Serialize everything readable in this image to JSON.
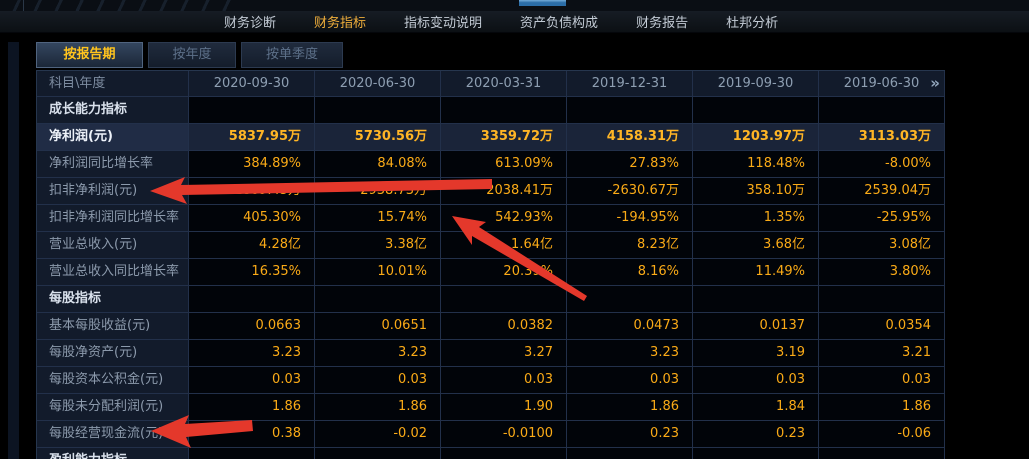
{
  "nav": {
    "items": [
      {
        "name": "nav-financial-diagnosis",
        "label": "财务诊断",
        "active": false
      },
      {
        "name": "nav-financial-indicators",
        "label": "财务指标",
        "active": true
      },
      {
        "name": "nav-indicator-change-notes",
        "label": "指标变动说明",
        "active": false
      },
      {
        "name": "nav-balance-sheet-structure",
        "label": "资产负债构成",
        "active": false
      },
      {
        "name": "nav-financial-report",
        "label": "财务报告",
        "active": false
      },
      {
        "name": "nav-dupont-analysis",
        "label": "杜邦分析",
        "active": false
      }
    ]
  },
  "tabs": [
    {
      "name": "tab-by-report-period",
      "label": "按报告期",
      "active": true
    },
    {
      "name": "tab-by-year",
      "label": "按年度",
      "active": false
    },
    {
      "name": "tab-by-single-quarter",
      "label": "按单季度",
      "active": false
    }
  ],
  "table": {
    "corner_label": "科目\\年度",
    "columns": [
      "2020-09-30",
      "2020-06-30",
      "2020-03-31",
      "2019-12-31",
      "2019-09-30",
      "2019-06-30"
    ],
    "more_icon": "»",
    "rows": [
      {
        "label": "成长能力指标",
        "type": "section",
        "values": [
          "",
          "",
          "",
          "",
          "",
          ""
        ]
      },
      {
        "label": "净利润(元)",
        "type": "data",
        "highlight": true,
        "values": [
          "5837.95万",
          "5730.56万",
          "3359.72万",
          "4158.31万",
          "1203.97万",
          "3113.03万"
        ]
      },
      {
        "label": "净利润同比增长率",
        "type": "data",
        "values": [
          "384.89%",
          "84.08%",
          "613.09%",
          "27.83%",
          "118.48%",
          "-8.00%"
        ]
      },
      {
        "label": "扣非净利润(元)",
        "type": "data",
        "values": [
          "1809.45万",
          "2938.73万",
          "2038.41万",
          "-2630.67万",
          "358.10万",
          "2539.04万"
        ]
      },
      {
        "label": "扣非净利润同比增长率",
        "type": "data",
        "values": [
          "405.30%",
          "15.74%",
          "542.93%",
          "-194.95%",
          "1.35%",
          "-25.95%"
        ]
      },
      {
        "label": "营业总收入(元)",
        "type": "data",
        "values": [
          "4.28亿",
          "3.38亿",
          "1.64亿",
          "8.23亿",
          "3.68亿",
          "3.08亿"
        ]
      },
      {
        "label": "营业总收入同比增长率",
        "type": "data",
        "values": [
          "16.35%",
          "10.01%",
          "20.39%",
          "8.16%",
          "11.49%",
          "3.80%"
        ]
      },
      {
        "label": "每股指标",
        "type": "section",
        "values": [
          "",
          "",
          "",
          "",
          "",
          ""
        ]
      },
      {
        "label": "基本每股收益(元)",
        "type": "data",
        "values": [
          "0.0663",
          "0.0651",
          "0.0382",
          "0.0473",
          "0.0137",
          "0.0354"
        ]
      },
      {
        "label": "每股净资产(元)",
        "type": "data",
        "values": [
          "3.23",
          "3.23",
          "3.27",
          "3.23",
          "3.19",
          "3.21"
        ]
      },
      {
        "label": "每股资本公积金(元)",
        "type": "data",
        "values": [
          "0.03",
          "0.03",
          "0.03",
          "0.03",
          "0.03",
          "0.03"
        ]
      },
      {
        "label": "每股未分配利润(元)",
        "type": "data",
        "values": [
          "1.86",
          "1.86",
          "1.90",
          "1.86",
          "1.84",
          "1.86"
        ]
      },
      {
        "label": "每股经营现金流(元)",
        "type": "data",
        "values": [
          "0.38",
          "-0.02",
          "-0.0100",
          "0.23",
          "0.23",
          "-0.06"
        ]
      },
      {
        "label": "盈利能力指标",
        "type": "section",
        "partial": true,
        "values": [
          "",
          "",
          "",
          "",
          "",
          ""
        ]
      }
    ]
  },
  "colors": {
    "value_orange": "#fbab17",
    "active_tab_yellow": "#ffc41e",
    "active_nav_yellow": "#efae3b",
    "annotation_red": "#e4382b",
    "top_tab_blue": "#2e72ad",
    "cell_border": "#22304a",
    "label_cell_bg": "#121b2b",
    "highlight_row_bg": "#1a2439"
  }
}
